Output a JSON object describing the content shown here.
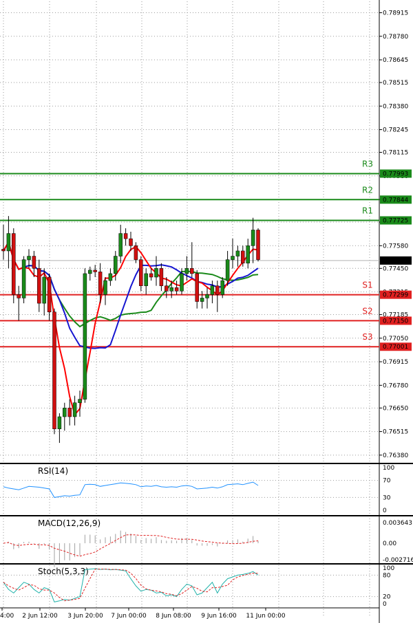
{
  "chart_data": {
    "type": "candlestick",
    "price_axis_ticks": [
      "0.78915",
      "0.78780",
      "0.78645",
      "0.78515",
      "0.78380",
      "0.78245",
      "0.78115",
      "0.77980",
      "0.77845",
      "0.77715",
      "0.77580",
      "0.77450",
      "0.77315",
      "0.77185",
      "0.77050",
      "0.76915",
      "0.76780",
      "0.76650",
      "0.76515",
      "0.76380"
    ],
    "ylim": [
      0.7634,
      0.7898
    ],
    "current_price": "0.77495",
    "x_ticks": [
      "4:00",
      "2 Jun 12:00",
      "3 Jun 20:00",
      "7 Jun 00:00",
      "8 Jun 08:00",
      "9 Jun 16:00",
      "11 Jun 00:00"
    ],
    "levels": [
      {
        "name": "R3",
        "value": 0.77993,
        "label": "0.77993",
        "color": "#1a8a1a"
      },
      {
        "name": "R2",
        "value": 0.77844,
        "label": "0.77844",
        "color": "#1a8a1a"
      },
      {
        "name": "R1",
        "value": 0.77725,
        "label": "0.77725",
        "color": "#1a8a1a"
      },
      {
        "name": "S1",
        "value": 0.77299,
        "label": "0.77299",
        "color": "#e02020"
      },
      {
        "name": "S2",
        "value": 0.7715,
        "label": "0.77150",
        "color": "#e02020"
      },
      {
        "name": "S3",
        "value": 0.77001,
        "label": "0.77001",
        "color": "#e02020"
      }
    ],
    "candles": [
      [
        0.7756,
        0.777,
        0.775,
        0.7755
      ],
      [
        0.7755,
        0.7775,
        0.7745,
        0.7765
      ],
      [
        0.7765,
        0.7768,
        0.7725,
        0.773
      ],
      [
        0.773,
        0.7735,
        0.7715,
        0.7728
      ],
      [
        0.7728,
        0.7752,
        0.7725,
        0.775
      ],
      [
        0.775,
        0.7756,
        0.7745,
        0.7752
      ],
      [
        0.7752,
        0.7755,
        0.774,
        0.7745
      ],
      [
        0.7745,
        0.775,
        0.772,
        0.7725
      ],
      [
        0.7725,
        0.7745,
        0.7718,
        0.774
      ],
      [
        0.774,
        0.7742,
        0.7715,
        0.772
      ],
      [
        0.772,
        0.7722,
        0.765,
        0.7653
      ],
      [
        0.7653,
        0.7662,
        0.7645,
        0.766
      ],
      [
        0.766,
        0.7668,
        0.7652,
        0.7665
      ],
      [
        0.7665,
        0.767,
        0.7655,
        0.766
      ],
      [
        0.766,
        0.7672,
        0.7655,
        0.7668
      ],
      [
        0.7668,
        0.7675,
        0.766,
        0.767
      ],
      [
        0.767,
        0.7745,
        0.7668,
        0.7742
      ],
      [
        0.7742,
        0.7746,
        0.7738,
        0.7744
      ],
      [
        0.7744,
        0.7747,
        0.774,
        0.7743
      ],
      [
        0.7743,
        0.7748,
        0.7725,
        0.773
      ],
      [
        0.773,
        0.774,
        0.7724,
        0.7738
      ],
      [
        0.7738,
        0.7745,
        0.7735,
        0.7742
      ],
      [
        0.7742,
        0.7755,
        0.7738,
        0.7752
      ],
      [
        0.7752,
        0.777,
        0.7748,
        0.7765
      ],
      [
        0.7765,
        0.7768,
        0.7758,
        0.7762
      ],
      [
        0.7762,
        0.7766,
        0.7755,
        0.7758
      ],
      [
        0.7758,
        0.776,
        0.7748,
        0.775
      ],
      [
        0.775,
        0.7752,
        0.7732,
        0.7735
      ],
      [
        0.7735,
        0.7745,
        0.773,
        0.7742
      ],
      [
        0.7742,
        0.7745,
        0.7738,
        0.774
      ],
      [
        0.774,
        0.7752,
        0.7735,
        0.7745
      ],
      [
        0.7745,
        0.7748,
        0.7732,
        0.7735
      ],
      [
        0.7735,
        0.774,
        0.7728,
        0.7732
      ],
      [
        0.7732,
        0.7738,
        0.7728,
        0.7734
      ],
      [
        0.7734,
        0.7738,
        0.773,
        0.7732
      ],
      [
        0.7732,
        0.7745,
        0.773,
        0.7742
      ],
      [
        0.7742,
        0.7752,
        0.7738,
        0.7745
      ],
      [
        0.7745,
        0.776,
        0.774,
        0.7742
      ],
      [
        0.7742,
        0.7744,
        0.7722,
        0.7726
      ],
      [
        0.7726,
        0.7732,
        0.7722,
        0.7728
      ],
      [
        0.7728,
        0.7734,
        0.7722,
        0.773
      ],
      [
        0.773,
        0.7738,
        0.7725,
        0.7735
      ],
      [
        0.7735,
        0.7738,
        0.772,
        0.773
      ],
      [
        0.773,
        0.774,
        0.7728,
        0.7738
      ],
      [
        0.7738,
        0.7755,
        0.7735,
        0.775
      ],
      [
        0.775,
        0.7762,
        0.7745,
        0.7752
      ],
      [
        0.7752,
        0.7758,
        0.7746,
        0.7755
      ],
      [
        0.7755,
        0.7758,
        0.7746,
        0.7748
      ],
      [
        0.7748,
        0.7762,
        0.7745,
        0.7758
      ],
      [
        0.7758,
        0.7774,
        0.7748,
        0.7767
      ],
      [
        0.7767,
        0.7768,
        0.7749,
        0.775
      ]
    ],
    "indicators": {
      "rsi": {
        "label": "RSI(14)",
        "levels": [
          100,
          70,
          30,
          0
        ]
      },
      "macd": {
        "label": "MACD(12,26,9)",
        "ticks": [
          "0.003643",
          "0.00",
          "-0.002716"
        ]
      },
      "stoch": {
        "label": "Stoch(5,3,3)",
        "levels": [
          100,
          80,
          20,
          0
        ]
      }
    },
    "colors": {
      "bull": "#1a8a1a",
      "bear": "#d01010",
      "ma_green": "#1a8a1a",
      "ma_red": "#ff0000",
      "ma_blue": "#1515d0",
      "rsi": "#1e90ff",
      "macd_signal": "#e02020",
      "stoch_main": "#20b2aa",
      "stoch_signal": "#e02020",
      "grid": "#9a9a9a"
    }
  }
}
